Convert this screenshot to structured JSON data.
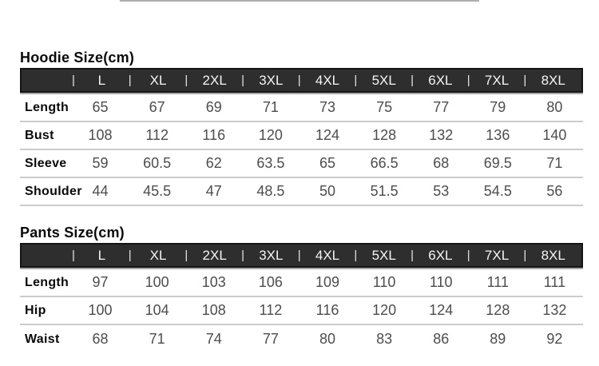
{
  "colors": {
    "background": "#ffffff",
    "header_bar_fill": "#2e2e2e",
    "header_bar_border": "#151515",
    "header_bar_shadow": "#a8a8a8",
    "header_text": "#f5f5f5",
    "title_text": "#0a0a0a",
    "value_text": "#4d4d4d",
    "divider_line": "#cccccc",
    "top_artifact_line": "#aeaeae"
  },
  "tables": [
    {
      "id": "hoodie",
      "title": "Hoodie Size(cm)",
      "separator": "|",
      "sizes": [
        "L",
        "XL",
        "2XL",
        "3XL",
        "4XL",
        "5XL",
        "6XL",
        "7XL",
        "8XL"
      ],
      "rows": [
        {
          "label": "Length",
          "values": [
            "65",
            "67",
            "69",
            "71",
            "73",
            "75",
            "77",
            "79",
            "80"
          ]
        },
        {
          "label": "Bust",
          "values": [
            "108",
            "112",
            "116",
            "120",
            "124",
            "128",
            "132",
            "136",
            "140"
          ]
        },
        {
          "label": "Sleeve",
          "values": [
            "59",
            "60.5",
            "62",
            "63.5",
            "65",
            "66.5",
            "68",
            "69.5",
            "71"
          ]
        },
        {
          "label": "Shoulder",
          "values": [
            "44",
            "45.5",
            "47",
            "48.5",
            "50",
            "51.5",
            "53",
            "54.5",
            "56"
          ]
        }
      ]
    },
    {
      "id": "pants",
      "title": "Pants Size(cm)",
      "separator": "|",
      "sizes": [
        "L",
        "XL",
        "2XL",
        "3XL",
        "4XL",
        "5XL",
        "6XL",
        "7XL",
        "8XL"
      ],
      "rows": [
        {
          "label": "Length",
          "values": [
            "97",
            "100",
            "103",
            "106",
            "109",
            "110",
            "110",
            "111",
            "111"
          ]
        },
        {
          "label": "Hip",
          "values": [
            "100",
            "104",
            "108",
            "112",
            "116",
            "120",
            "124",
            "128",
            "132"
          ]
        },
        {
          "label": "Waist",
          "values": [
            "68",
            "71",
            "74",
            "77",
            "80",
            "83",
            "86",
            "89",
            "92"
          ]
        }
      ]
    }
  ]
}
